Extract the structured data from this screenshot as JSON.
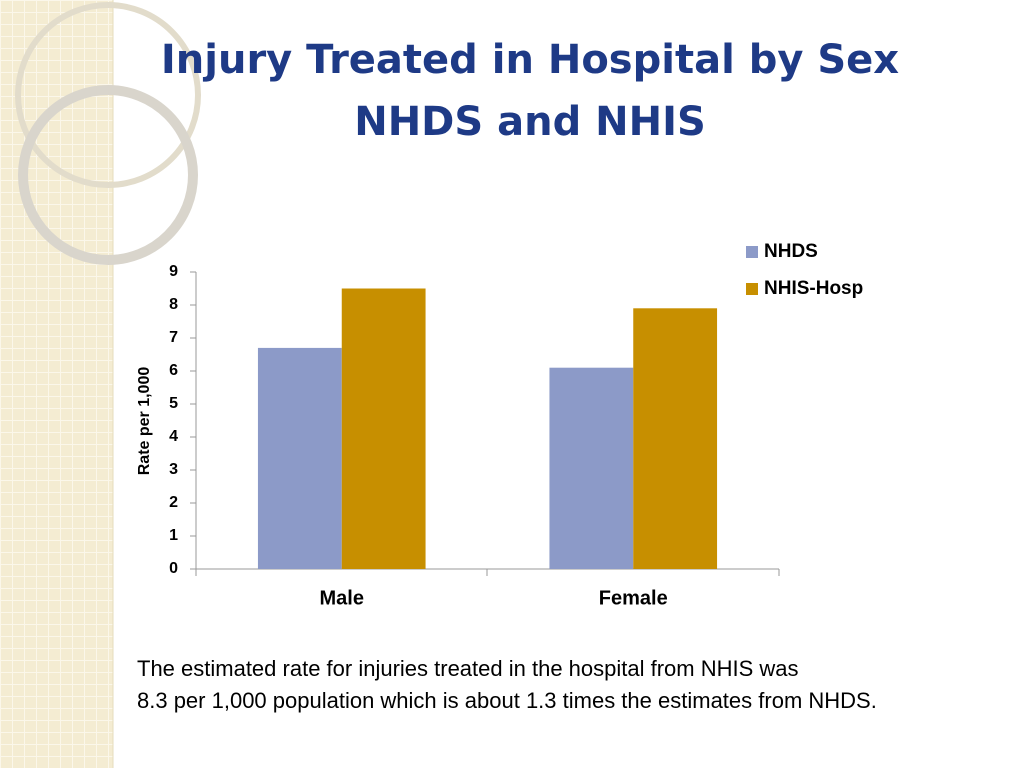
{
  "chart_data": {
    "type": "bar",
    "title": [
      "Injury Treated in Hospital by Sex",
      "NHDS and NHIS"
    ],
    "y_label": "Rate per 1,000",
    "categories": [
      "Male",
      "Female"
    ],
    "series": [
      {
        "name": "NHDS",
        "color": "#8c9ac8",
        "values": [
          6.7,
          6.1
        ]
      },
      {
        "name": "NHIS-Hosp",
        "color": "#c78f00",
        "values": [
          8.5,
          7.9
        ]
      }
    ],
    "ylim": [
      0,
      9
    ],
    "yticks": [
      0,
      1,
      2,
      3,
      4,
      5,
      6,
      7,
      8,
      9
    ],
    "legend": "right",
    "caption": [
      "The estimated rate for injuries treated in the hospital from NHIS was",
      "8.3 per 1,000 population which is about 1.3 times the estimates from NHDS."
    ]
  }
}
